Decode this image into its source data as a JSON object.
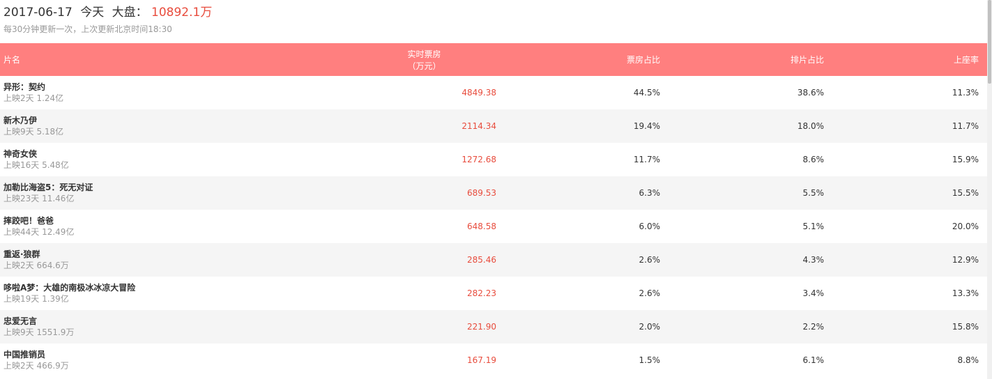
{
  "header": {
    "date": "2017-06-17",
    "day_label": "今天",
    "market_label": "大盘：",
    "total": "10892.1万",
    "update_note": "每30分钟更新一次，上次更新北京时间18:30"
  },
  "columns": {
    "name": "片名",
    "box_line1": "实时票房",
    "box_line2": "（万元）",
    "box_share": "票房占比",
    "show_share": "排片占比",
    "seat_rate": "上座率"
  },
  "movies": [
    {
      "name": "异形：契约",
      "meta": "上映2天 1.24亿",
      "box": "4849.38",
      "box_share": "44.5%",
      "show_share": "38.6%",
      "seat_rate": "11.3%"
    },
    {
      "name": "新木乃伊",
      "meta": "上映9天 5.18亿",
      "box": "2114.34",
      "box_share": "19.4%",
      "show_share": "18.0%",
      "seat_rate": "11.7%"
    },
    {
      "name": "神奇女侠",
      "meta": "上映16天 5.48亿",
      "box": "1272.68",
      "box_share": "11.7%",
      "show_share": "8.6%",
      "seat_rate": "15.9%"
    },
    {
      "name": "加勒比海盗5：死无对证",
      "meta": "上映23天 11.46亿",
      "box": "689.53",
      "box_share": "6.3%",
      "show_share": "5.5%",
      "seat_rate": "15.5%"
    },
    {
      "name": "摔跤吧！爸爸",
      "meta": "上映44天 12.49亿",
      "box": "648.58",
      "box_share": "6.0%",
      "show_share": "5.1%",
      "seat_rate": "20.0%"
    },
    {
      "name": "重返·狼群",
      "meta": "上映2天 664.6万",
      "box": "285.46",
      "box_share": "2.6%",
      "show_share": "4.3%",
      "seat_rate": "12.9%"
    },
    {
      "name": "哆啦A梦：大雄的南极冰冰凉大冒险",
      "meta": "上映19天 1.39亿",
      "box": "282.23",
      "box_share": "2.6%",
      "show_share": "3.4%",
      "seat_rate": "13.3%"
    },
    {
      "name": "忠爱无言",
      "meta": "上映9天 1551.9万",
      "box": "221.90",
      "box_share": "2.0%",
      "show_share": "2.2%",
      "seat_rate": "15.8%"
    },
    {
      "name": "中国推销员",
      "meta": "上映2天 466.9万",
      "box": "167.19",
      "box_share": "1.5%",
      "show_share": "6.1%",
      "seat_rate": "8.8%"
    }
  ],
  "colors": {
    "header_bg": "#ff7f7f",
    "accent_red": "#e84c3d",
    "row_alt": "#f5f5f5"
  }
}
